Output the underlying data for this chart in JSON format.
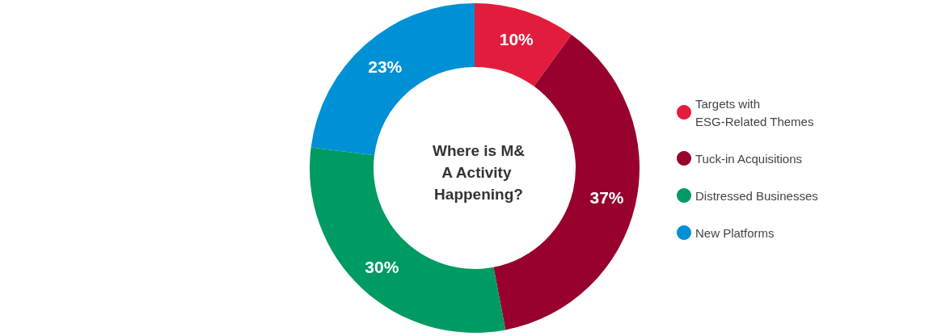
{
  "chart_data": {
    "type": "donut",
    "title": "Where is M&A Activity Happening?",
    "categories": [
      "Targets with ESG-Related Themes",
      "Tuck-in Acquisitions",
      "Distressed Businesses",
      "New Platforms"
    ],
    "values": [
      10,
      37,
      30,
      23
    ],
    "colors": [
      "#e31c3d",
      "#98002e",
      "#009a63",
      "#0090d6"
    ],
    "value_labels": [
      "10%",
      "37%",
      "30%",
      "23%"
    ],
    "legend": "right"
  }
}
